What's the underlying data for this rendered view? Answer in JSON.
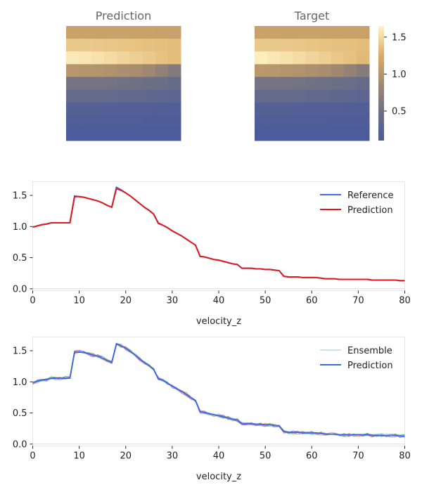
{
  "colors": {
    "reference": "#4169e1",
    "prediction_line": "#e31a1c",
    "ensemble_palette": [
      "#8ecae6",
      "#e76f51",
      "#2a9d8f",
      "#f4a261",
      "#9b5de5",
      "#90be6d"
    ],
    "colormap": [
      "#4a5a9c",
      "#6d6f86",
      "#a38a6f",
      "#dcae66",
      "#fff2c4"
    ]
  },
  "chart_data": [
    {
      "type": "heatmap",
      "title": "Prediction",
      "cols": 9,
      "rows": [
        [
          1.13,
          1.13,
          1.13,
          1.13,
          1.13,
          1.13,
          1.13,
          1.12,
          1.12
        ],
        [
          1.42,
          1.42,
          1.41,
          1.4,
          1.39,
          1.38,
          1.37,
          1.36,
          1.35
        ],
        [
          1.6,
          1.58,
          1.55,
          1.52,
          1.48,
          1.45,
          1.42,
          1.38,
          1.35
        ],
        [
          1.02,
          1.0,
          0.98,
          0.96,
          0.93,
          0.9,
          0.85,
          0.75,
          0.65
        ],
        [
          0.55,
          0.55,
          0.55,
          0.54,
          0.52,
          0.5,
          0.48,
          0.46,
          0.42
        ],
        [
          0.4,
          0.4,
          0.4,
          0.39,
          0.38,
          0.37,
          0.35,
          0.33,
          0.31
        ],
        [
          0.22,
          0.22,
          0.22,
          0.21,
          0.21,
          0.2,
          0.2,
          0.19,
          0.19
        ],
        [
          0.15,
          0.15,
          0.15,
          0.15,
          0.15,
          0.15,
          0.14,
          0.14,
          0.14
        ],
        [
          0.12,
          0.12,
          0.12,
          0.12,
          0.12,
          0.12,
          0.12,
          0.12,
          0.12
        ]
      ]
    },
    {
      "type": "heatmap",
      "title": "Target",
      "cols": 9,
      "rows": [
        [
          1.13,
          1.13,
          1.13,
          1.13,
          1.13,
          1.13,
          1.13,
          1.12,
          1.12
        ],
        [
          1.42,
          1.42,
          1.41,
          1.4,
          1.39,
          1.38,
          1.37,
          1.36,
          1.35
        ],
        [
          1.62,
          1.59,
          1.56,
          1.52,
          1.48,
          1.45,
          1.41,
          1.37,
          1.33
        ],
        [
          1.03,
          1.01,
          0.99,
          0.97,
          0.94,
          0.91,
          0.86,
          0.76,
          0.66
        ],
        [
          0.55,
          0.55,
          0.55,
          0.54,
          0.52,
          0.5,
          0.48,
          0.46,
          0.42
        ],
        [
          0.4,
          0.4,
          0.4,
          0.39,
          0.38,
          0.37,
          0.35,
          0.33,
          0.31
        ],
        [
          0.22,
          0.22,
          0.22,
          0.21,
          0.21,
          0.2,
          0.2,
          0.19,
          0.19
        ],
        [
          0.15,
          0.15,
          0.15,
          0.15,
          0.15,
          0.15,
          0.14,
          0.14,
          0.14
        ],
        [
          0.12,
          0.12,
          0.12,
          0.12,
          0.12,
          0.12,
          0.12,
          0.12,
          0.12
        ]
      ],
      "colorbar": {
        "ticks": [
          "0.5",
          "1.0",
          "1.5"
        ],
        "tick_values": [
          0.5,
          1.0,
          1.5
        ],
        "range": [
          0.1,
          1.65
        ]
      }
    },
    {
      "type": "line",
      "xlabel": "velocity_z",
      "xlim": [
        0,
        80
      ],
      "ylim": [
        -0.03,
        1.72
      ],
      "xticks": [
        "0",
        "10",
        "20",
        "30",
        "40",
        "50",
        "60",
        "70",
        "80"
      ],
      "yticks": [
        "0.0",
        "0.5",
        "1.0",
        "1.5"
      ],
      "legend_position": "top-right",
      "series": [
        {
          "name": "Reference",
          "x": [
            0,
            1,
            2,
            3,
            4,
            5,
            6,
            7,
            8,
            9,
            10,
            11,
            12,
            13,
            14,
            15,
            16,
            17,
            18,
            19,
            20,
            21,
            22,
            23,
            24,
            25,
            26,
            27,
            28,
            29,
            30,
            31,
            32,
            33,
            34,
            35,
            36,
            37,
            38,
            39,
            40,
            41,
            42,
            43,
            44,
            45,
            46,
            47,
            48,
            49,
            50,
            51,
            52,
            53,
            54,
            55,
            56,
            57,
            58,
            59,
            60,
            61,
            62,
            63,
            64,
            65,
            66,
            67,
            68,
            69,
            70,
            71,
            72,
            73,
            74,
            75,
            76,
            77,
            78,
            79,
            80
          ],
          "values": [
            0.99,
            1.01,
            1.03,
            1.04,
            1.06,
            1.06,
            1.06,
            1.06,
            1.06,
            1.49,
            1.48,
            1.47,
            1.45,
            1.43,
            1.41,
            1.38,
            1.34,
            1.31,
            1.63,
            1.59,
            1.54,
            1.49,
            1.43,
            1.37,
            1.31,
            1.26,
            1.2,
            1.06,
            1.02,
            0.98,
            0.93,
            0.89,
            0.85,
            0.8,
            0.75,
            0.7,
            0.52,
            0.51,
            0.49,
            0.47,
            0.46,
            0.44,
            0.42,
            0.4,
            0.39,
            0.33,
            0.33,
            0.33,
            0.32,
            0.32,
            0.31,
            0.31,
            0.3,
            0.29,
            0.2,
            0.19,
            0.19,
            0.19,
            0.18,
            0.18,
            0.18,
            0.18,
            0.17,
            0.16,
            0.16,
            0.16,
            0.15,
            0.15,
            0.15,
            0.15,
            0.15,
            0.15,
            0.15,
            0.14,
            0.14,
            0.14,
            0.14,
            0.14,
            0.14,
            0.13,
            0.13
          ]
        },
        {
          "name": "Prediction",
          "x": [
            0,
            1,
            2,
            3,
            4,
            5,
            6,
            7,
            8,
            9,
            10,
            11,
            12,
            13,
            14,
            15,
            16,
            17,
            18,
            19,
            20,
            21,
            22,
            23,
            24,
            25,
            26,
            27,
            28,
            29,
            30,
            31,
            32,
            33,
            34,
            35,
            36,
            37,
            38,
            39,
            40,
            41,
            42,
            43,
            44,
            45,
            46,
            47,
            48,
            49,
            50,
            51,
            52,
            53,
            54,
            55,
            56,
            57,
            58,
            59,
            60,
            61,
            62,
            63,
            64,
            65,
            66,
            67,
            68,
            69,
            70,
            71,
            72,
            73,
            74,
            75,
            76,
            77,
            78,
            79,
            80
          ],
          "values": [
            0.99,
            1.01,
            1.03,
            1.04,
            1.06,
            1.06,
            1.06,
            1.06,
            1.06,
            1.48,
            1.48,
            1.47,
            1.45,
            1.43,
            1.41,
            1.38,
            1.34,
            1.31,
            1.61,
            1.58,
            1.54,
            1.49,
            1.43,
            1.37,
            1.31,
            1.26,
            1.2,
            1.05,
            1.02,
            0.98,
            0.93,
            0.89,
            0.85,
            0.8,
            0.75,
            0.7,
            0.52,
            0.51,
            0.49,
            0.47,
            0.46,
            0.44,
            0.42,
            0.4,
            0.39,
            0.33,
            0.33,
            0.33,
            0.32,
            0.32,
            0.31,
            0.31,
            0.3,
            0.29,
            0.2,
            0.19,
            0.19,
            0.19,
            0.18,
            0.18,
            0.18,
            0.18,
            0.17,
            0.16,
            0.16,
            0.16,
            0.15,
            0.15,
            0.15,
            0.15,
            0.15,
            0.15,
            0.15,
            0.14,
            0.14,
            0.14,
            0.14,
            0.14,
            0.14,
            0.13,
            0.13
          ]
        }
      ]
    },
    {
      "type": "line",
      "xlabel": "velocity_z",
      "xlim": [
        0,
        80
      ],
      "ylim": [
        -0.03,
        1.72
      ],
      "xticks": [
        "0",
        "10",
        "20",
        "30",
        "40",
        "50",
        "60",
        "70",
        "80"
      ],
      "yticks": [
        "0.0",
        "0.5",
        "1.0",
        "1.5"
      ],
      "legend_position": "top-right",
      "legend": [
        "Ensemble",
        "Prediction"
      ],
      "ensemble_members": 6,
      "ensemble_noise": 0.03,
      "series": [
        {
          "name": "Prediction",
          "x": [
            0,
            1,
            2,
            3,
            4,
            5,
            6,
            7,
            8,
            9,
            10,
            11,
            12,
            13,
            14,
            15,
            16,
            17,
            18,
            19,
            20,
            21,
            22,
            23,
            24,
            25,
            26,
            27,
            28,
            29,
            30,
            31,
            32,
            33,
            34,
            35,
            36,
            37,
            38,
            39,
            40,
            41,
            42,
            43,
            44,
            45,
            46,
            47,
            48,
            49,
            50,
            51,
            52,
            53,
            54,
            55,
            56,
            57,
            58,
            59,
            60,
            61,
            62,
            63,
            64,
            65,
            66,
            67,
            68,
            69,
            70,
            71,
            72,
            73,
            74,
            75,
            76,
            77,
            78,
            79,
            80
          ],
          "values": [
            0.99,
            1.01,
            1.03,
            1.04,
            1.06,
            1.06,
            1.06,
            1.06,
            1.06,
            1.48,
            1.48,
            1.47,
            1.45,
            1.43,
            1.41,
            1.38,
            1.34,
            1.31,
            1.61,
            1.58,
            1.54,
            1.49,
            1.43,
            1.37,
            1.31,
            1.26,
            1.2,
            1.05,
            1.02,
            0.98,
            0.93,
            0.89,
            0.85,
            0.8,
            0.75,
            0.7,
            0.52,
            0.51,
            0.49,
            0.47,
            0.46,
            0.44,
            0.42,
            0.4,
            0.39,
            0.33,
            0.33,
            0.33,
            0.32,
            0.32,
            0.31,
            0.31,
            0.3,
            0.29,
            0.2,
            0.19,
            0.19,
            0.19,
            0.18,
            0.18,
            0.18,
            0.18,
            0.17,
            0.16,
            0.16,
            0.16,
            0.15,
            0.15,
            0.15,
            0.15,
            0.15,
            0.15,
            0.15,
            0.14,
            0.14,
            0.14,
            0.14,
            0.14,
            0.14,
            0.13,
            0.13
          ]
        }
      ]
    }
  ]
}
